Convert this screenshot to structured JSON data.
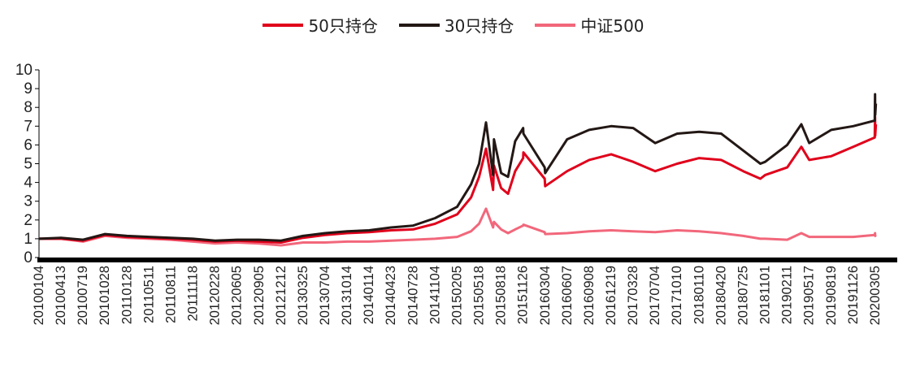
{
  "chart_data": {
    "type": "line",
    "title": "",
    "xlabel": "",
    "ylabel": "",
    "ylim": [
      0,
      10
    ],
    "yticks": [
      "0",
      "1",
      "2",
      "3",
      "4",
      "5",
      "6",
      "7",
      "8",
      "9",
      "10"
    ],
    "grid": false,
    "legend_position": "top-center",
    "x_tick_labels": [
      "20100104",
      "20100413",
      "20100719",
      "20101028",
      "20110128",
      "20110511",
      "20110811",
      "20111118",
      "20120228",
      "20120605",
      "20120905",
      "20121212",
      "20130325",
      "20130704",
      "20131014",
      "20140114",
      "20140423",
      "20140728",
      "20141104",
      "20150205",
      "20150518",
      "20150818",
      "20151126",
      "20160304",
      "20160607",
      "20160908",
      "20161219",
      "20170328",
      "20170704",
      "20171010",
      "20180110",
      "20180420",
      "20180725",
      "20181101",
      "20190211",
      "20190517",
      "20190819",
      "20191126",
      "20200305"
    ],
    "series": [
      {
        "name": "50只持仓",
        "color": "#e0001b",
        "x": [
          "20100104",
          "20100413",
          "20100719",
          "20101028",
          "20110128",
          "20110511",
          "20110811",
          "20111118",
          "20120228",
          "20120605",
          "20120905",
          "20121212",
          "20130325",
          "20130704",
          "20131014",
          "20140114",
          "20140423",
          "20140728",
          "20141104",
          "20150205",
          "20150403",
          "20150518",
          "20150612",
          "20150708",
          "20150720",
          "20150818",
          "20150915",
          "20151015",
          "20151126",
          "20151225",
          "20160128",
          "20160304",
          "20160607",
          "20160908",
          "20161219",
          "20170328",
          "20170704",
          "20171010",
          "20180110",
          "20180420",
          "20180725",
          "20181019",
          "20181101",
          "20190211",
          "20190408",
          "20190517",
          "20190819",
          "20191126",
          "20200110",
          "20200218",
          "20200305",
          "20200420"
        ],
        "y": [
          1.0,
          1.0,
          0.9,
          1.2,
          1.1,
          1.05,
          1.0,
          0.95,
          0.85,
          0.9,
          0.85,
          0.8,
          1.05,
          1.2,
          1.3,
          1.35,
          1.45,
          1.5,
          1.8,
          2.3,
          3.2,
          4.3,
          5.8,
          3.6,
          4.9,
          3.7,
          3.4,
          4.6,
          5.3,
          5.6,
          4.2,
          3.8,
          4.6,
          5.2,
          5.5,
          5.1,
          4.6,
          5.0,
          5.3,
          5.2,
          4.6,
          4.2,
          4.4,
          4.8,
          5.9,
          5.2,
          5.4,
          5.9,
          6.4,
          7.5,
          6.5,
          7.1
        ]
      },
      {
        "name": "30只持仓",
        "color": "#231815",
        "x": [
          "20100104",
          "20100413",
          "20100719",
          "20101028",
          "20110128",
          "20110511",
          "20110811",
          "20111118",
          "20120228",
          "20120605",
          "20120905",
          "20121212",
          "20130325",
          "20130704",
          "20131014",
          "20140114",
          "20140423",
          "20140728",
          "20141104",
          "20150205",
          "20150403",
          "20150518",
          "20150612",
          "20150708",
          "20150720",
          "20150818",
          "20150915",
          "20151015",
          "20151126",
          "20151225",
          "20160128",
          "20160304",
          "20160607",
          "20160908",
          "20161219",
          "20170328",
          "20170704",
          "20171010",
          "20180110",
          "20180420",
          "20180725",
          "20181019",
          "20181101",
          "20190211",
          "20190408",
          "20190517",
          "20190819",
          "20191126",
          "20200110",
          "20200218",
          "20200305",
          "20200420"
        ],
        "y": [
          1.0,
          1.05,
          0.95,
          1.25,
          1.15,
          1.1,
          1.05,
          1.0,
          0.9,
          0.95,
          0.95,
          0.9,
          1.15,
          1.3,
          1.4,
          1.45,
          1.6,
          1.7,
          2.1,
          2.7,
          3.9,
          5.0,
          7.2,
          4.4,
          6.3,
          4.5,
          4.3,
          6.2,
          6.9,
          6.6,
          4.8,
          4.5,
          6.3,
          6.8,
          7.0,
          6.9,
          6.1,
          6.6,
          6.7,
          6.6,
          5.7,
          5.0,
          5.1,
          6.0,
          7.1,
          6.1,
          6.8,
          7.0,
          7.3,
          8.7,
          7.6,
          8.2
        ]
      },
      {
        "name": "中证500",
        "color": "#f2677b",
        "x": [
          "20100104",
          "20100413",
          "20100719",
          "20101028",
          "20110128",
          "20110511",
          "20110811",
          "20111118",
          "20120228",
          "20120605",
          "20120905",
          "20121212",
          "20130325",
          "20130704",
          "20131014",
          "20140114",
          "20140423",
          "20140728",
          "20141104",
          "20150205",
          "20150403",
          "20150518",
          "20150612",
          "20150708",
          "20150720",
          "20150818",
          "20150915",
          "20151015",
          "20151126",
          "20151225",
          "20160128",
          "20160304",
          "20160607",
          "20160908",
          "20161219",
          "20170328",
          "20170704",
          "20171010",
          "20180110",
          "20180420",
          "20180725",
          "20181019",
          "20181101",
          "20190211",
          "20190408",
          "20190517",
          "20190819",
          "20191126",
          "20200110",
          "20200218",
          "20200305",
          "20200420"
        ],
        "y": [
          1.0,
          1.0,
          0.85,
          1.15,
          1.05,
          1.0,
          0.95,
          0.85,
          0.75,
          0.8,
          0.75,
          0.65,
          0.8,
          0.8,
          0.85,
          0.85,
          0.9,
          0.95,
          1.0,
          1.1,
          1.4,
          1.8,
          2.6,
          1.6,
          1.9,
          1.5,
          1.3,
          1.5,
          1.7,
          1.75,
          1.35,
          1.25,
          1.3,
          1.4,
          1.45,
          1.4,
          1.35,
          1.45,
          1.4,
          1.3,
          1.15,
          1.0,
          1.0,
          0.95,
          1.3,
          1.1,
          1.1,
          1.1,
          1.2,
          1.3,
          1.15,
          1.2
        ]
      }
    ]
  }
}
